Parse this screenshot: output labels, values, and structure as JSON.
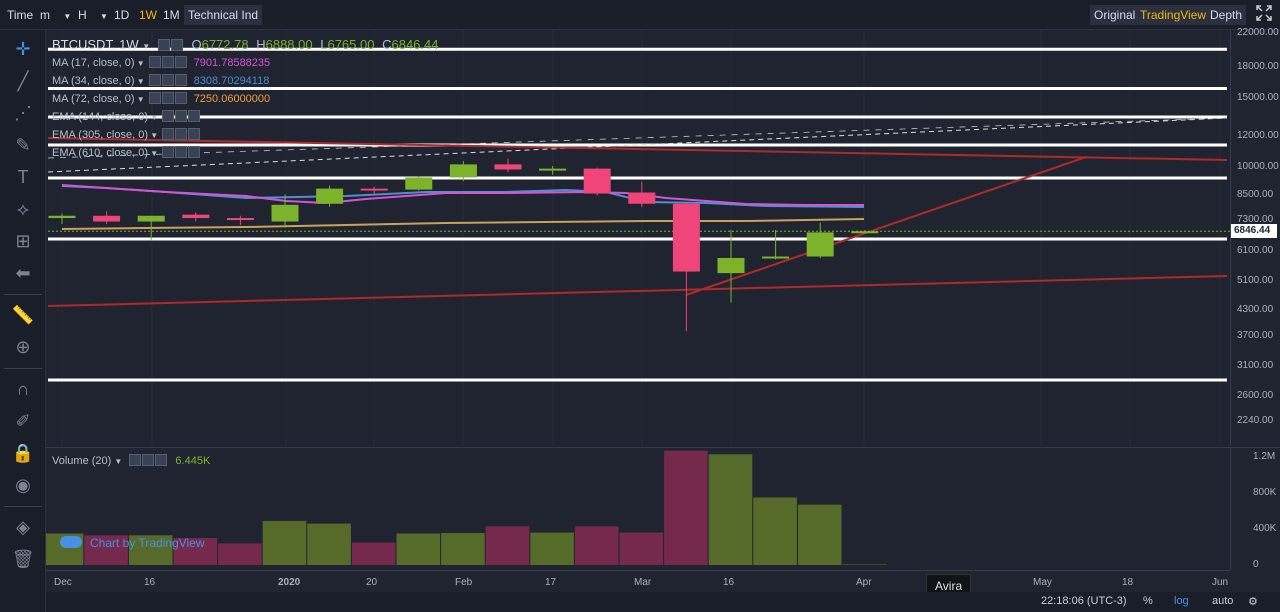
{
  "toolbar": {
    "time": "Time",
    "minute": "m",
    "hour": "H",
    "day": "1D",
    "week": "1W",
    "month": "1M",
    "technical": "Technical Ind",
    "original": "Original",
    "tradingview": "TradingView",
    "depth": "Depth"
  },
  "header": {
    "symbol": "BTCUSDT, 1W",
    "o_label": "O",
    "o": "6772.78",
    "h_label": "H",
    "h": "6888.00",
    "l_label": "L",
    "l": "6765.00",
    "c_label": "C",
    "c": "6846.44"
  },
  "indicators": [
    {
      "label": "MA (17, close, 0)",
      "value": "7901.78588235",
      "color": "#d454d6"
    },
    {
      "label": "MA (34, close, 0)",
      "value": "8308.70294118",
      "color": "#4f8ecf"
    },
    {
      "label": "MA (72, close, 0)",
      "value": "7250.06000000",
      "color": "#f0a040"
    },
    {
      "label": "EMA (144, close, 0)",
      "value": "",
      "color": ""
    },
    {
      "label": "EMA (305, close, 0)",
      "value": "",
      "color": ""
    },
    {
      "label": "EMA (610, close, 0)",
      "value": "",
      "color": ""
    }
  ],
  "volume": {
    "label": "Volume (20)",
    "value": "6.445K"
  },
  "price_axis": [
    "22000.00",
    "18000.00",
    "15000.00",
    "12000.00",
    "10000.00",
    "8500.00",
    "7300.00",
    "6100.00",
    "5100.00",
    "4300.00",
    "3700.00",
    "3100.00",
    "2600.00",
    "2240.00"
  ],
  "current_price": "6846.44",
  "vol_axis": [
    "1.2M",
    "800K",
    "400K",
    "0"
  ],
  "time_axis": [
    "Dec",
    "16",
    "2020",
    "20",
    "Feb",
    "17",
    "Mar",
    "16",
    "Apr",
    "May",
    "18",
    "Jun"
  ],
  "watermark": "Chart by TradingView",
  "tooltip": "Avira",
  "bottom": {
    "clock": "22:18:06 (UTC-3)",
    "percent": "%",
    "log": "log",
    "auto": "auto"
  },
  "colors": {
    "up": "#7cb32b",
    "down": "#f0457a",
    "accent": "#f0b90b"
  },
  "chart_data": {
    "type": "candlestick",
    "candles": [
      {
        "o": 7400,
        "h": 7600,
        "l": 7150,
        "c": 7500
      },
      {
        "o": 7500,
        "h": 7700,
        "l": 7150,
        "c": 7250
      },
      {
        "o": 7250,
        "h": 7500,
        "l": 6500,
        "c": 7500
      },
      {
        "o": 7550,
        "h": 7650,
        "l": 7250,
        "c": 7400
      },
      {
        "o": 7400,
        "h": 7500,
        "l": 7100,
        "c": 7350
      },
      {
        "o": 7250,
        "h": 8500,
        "l": 7000,
        "c": 8000
      },
      {
        "o": 8050,
        "h": 8950,
        "l": 7900,
        "c": 8800
      },
      {
        "o": 8800,
        "h": 8900,
        "l": 8500,
        "c": 8700
      },
      {
        "o": 8750,
        "h": 9450,
        "l": 8700,
        "c": 9400
      },
      {
        "o": 9400,
        "h": 10350,
        "l": 9200,
        "c": 10150
      },
      {
        "o": 10150,
        "h": 10500,
        "l": 9700,
        "c": 9850
      },
      {
        "o": 9900,
        "h": 10050,
        "l": 9550,
        "c": 9900
      },
      {
        "o": 9900,
        "h": 9950,
        "l": 8450,
        "c": 8550
      },
      {
        "o": 8600,
        "h": 9150,
        "l": 7900,
        "c": 8050
      },
      {
        "o": 8050,
        "h": 8100,
        "l": 3800,
        "c": 5400
      },
      {
        "o": 5350,
        "h": 6900,
        "l": 4500,
        "c": 5850
      },
      {
        "o": 5850,
        "h": 6900,
        "l": 5800,
        "c": 5900
      },
      {
        "o": 5900,
        "h": 7200,
        "l": 5850,
        "c": 6800
      },
      {
        "o": 6772.78,
        "h": 6888.0,
        "l": 6765.0,
        "c": 6846.44
      }
    ],
    "volumes_k": [
      350,
      330,
      330,
      300,
      240,
      490,
      460,
      250,
      350,
      355,
      430,
      360,
      430,
      360,
      1270,
      1230,
      750,
      670,
      6.445
    ]
  }
}
